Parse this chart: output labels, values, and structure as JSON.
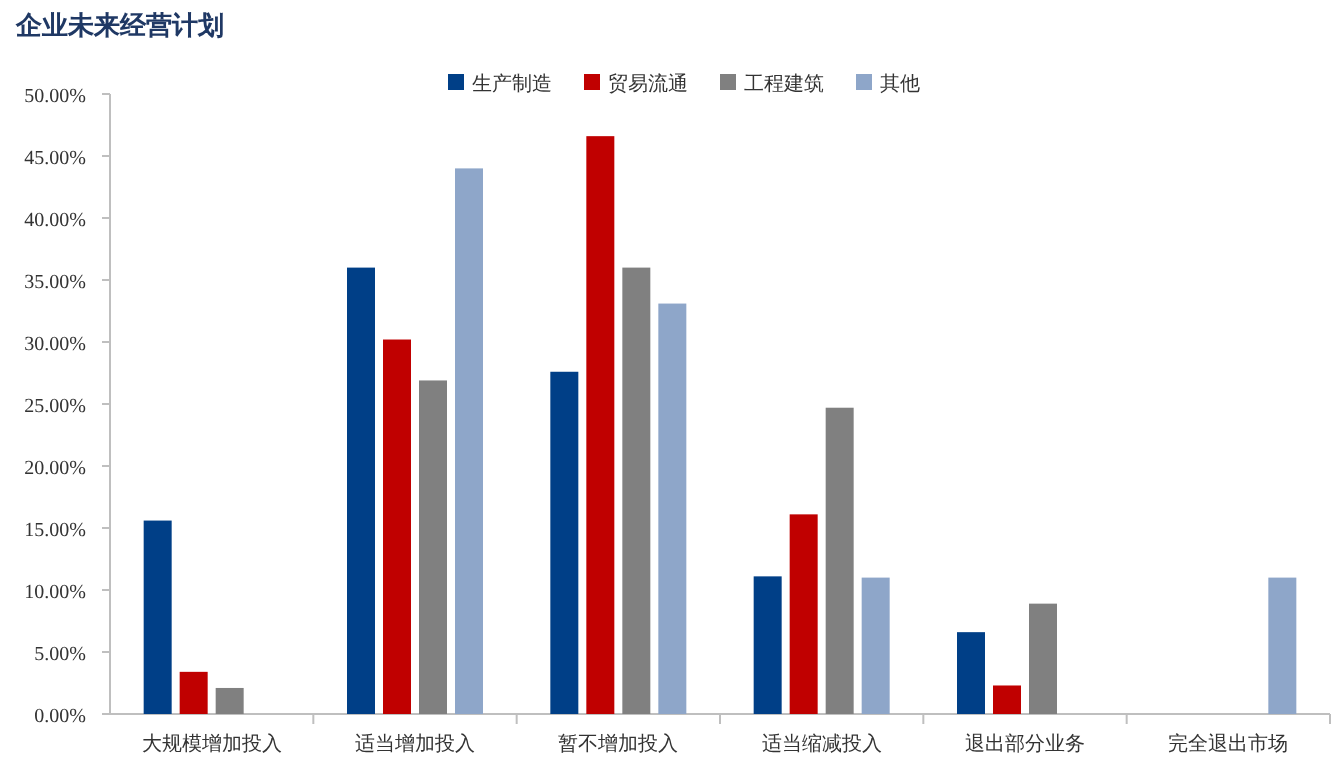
{
  "chart_data": {
    "type": "bar",
    "title": "企业未来经营计划",
    "categories": [
      "大规模增加投入",
      "适当增加投入",
      "暂不增加投入",
      "适当缩减投入",
      "退出部分业务",
      "完全退出市场"
    ],
    "series": [
      {
        "name": "生产制造",
        "color": "#003f87",
        "values": [
          15.6,
          36.0,
          27.6,
          11.1,
          6.6,
          null
        ]
      },
      {
        "name": "贸易流通",
        "color": "#c00000",
        "values": [
          3.4,
          30.2,
          46.6,
          16.1,
          2.3,
          null
        ]
      },
      {
        "name": "工程建筑",
        "color": "#808080",
        "values": [
          2.1,
          26.9,
          36.0,
          24.7,
          8.9,
          null
        ]
      },
      {
        "name": "其他",
        "color": "#8ea6c9",
        "values": [
          null,
          44.0,
          33.1,
          11.0,
          null,
          11.0
        ]
      }
    ],
    "ylim": [
      0,
      50
    ],
    "yticks": [
      {
        "value": 0,
        "label": "0.00%"
      },
      {
        "value": 5,
        "label": "5.00%"
      },
      {
        "value": 10,
        "label": "10.00%"
      },
      {
        "value": 15,
        "label": "15.00%"
      },
      {
        "value": 20,
        "label": "20.00%"
      },
      {
        "value": 25,
        "label": "25.00%"
      },
      {
        "value": 30,
        "label": "30.00%"
      },
      {
        "value": 35,
        "label": "35.00%"
      },
      {
        "value": 40,
        "label": "40.00%"
      },
      {
        "value": 45,
        "label": "45.00%"
      },
      {
        "value": 50,
        "label": "50.00%"
      }
    ],
    "legend": "top",
    "grid": false
  }
}
